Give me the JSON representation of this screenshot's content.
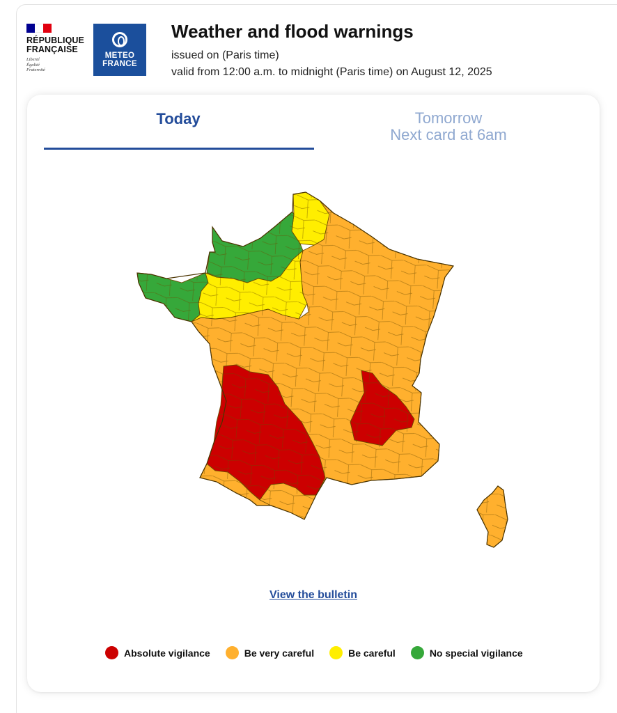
{
  "header": {
    "rep_name_line1": "RÉPUBLIQUE",
    "rep_name_line2": "FRANÇAISE",
    "motto_1": "Liberté",
    "motto_2": "Égalité",
    "motto_3": "Fraternité",
    "mf_line1": "METEO",
    "mf_line2": "FRANCE",
    "title": "Weather and flood warnings",
    "issued": "issued on (Paris time)",
    "valid": "valid from 12:00 a.m. to midnight (Paris time) on August 12, 2025"
  },
  "tabs": {
    "today": "Today",
    "tomorrow_line1": "Tomorrow",
    "tomorrow_line2": "Next card at 6am"
  },
  "map": {
    "colors": {
      "red": "#cc0000",
      "orange": "#ffb02e",
      "yellow": "#ffee00",
      "green": "#36a83a",
      "border": "#6b4a00"
    },
    "regions": {
      "north": "yellow",
      "normandy": "green",
      "brittany": "green",
      "center_north": "yellow",
      "east_and_center": "orange",
      "southwest": "red",
      "rhone_alps_core": "red",
      "pyrenees": "orange",
      "corsica": "orange"
    }
  },
  "bulletin_link": "View the bulletin",
  "legend": [
    {
      "label": "Absolute vigilance",
      "color": "#cc0000"
    },
    {
      "label": "Be very careful",
      "color": "#ffb02e"
    },
    {
      "label": "Be careful",
      "color": "#ffee00"
    },
    {
      "label": "No special vigilance",
      "color": "#36a83a"
    }
  ]
}
